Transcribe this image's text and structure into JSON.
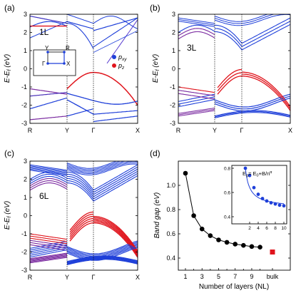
{
  "colors": {
    "p_xy": "#1e3fd9",
    "p_z": "#e0141c"
  },
  "panels": [
    {
      "id": "a",
      "label": "(a)",
      "layer_tag": "1L",
      "ylabel": "E-E_f (eV)",
      "yticks": [
        "3",
        "2",
        "1",
        "0",
        "-1",
        "-2",
        "-3"
      ],
      "kpoints": [
        "R",
        "Y",
        "Γ",
        "X"
      ],
      "legend": {
        "pxy": "p_xy",
        "pz": "p_z"
      },
      "bz": {
        "Y": "Y",
        "R": "R",
        "G": "Γ",
        "X": "X"
      }
    },
    {
      "id": "b",
      "label": "(b)",
      "layer_tag": "3L",
      "ylabel": "E-E_f (eV)",
      "yticks": [
        "3",
        "2",
        "1",
        "0",
        "-1",
        "-2",
        "-3"
      ],
      "kpoints": [
        "R",
        "Y",
        "Γ",
        "X"
      ]
    },
    {
      "id": "c",
      "label": "(c)",
      "layer_tag": "6L",
      "ylabel": "E-E_f (eV)",
      "yticks": [
        "3",
        "2",
        "1",
        "0",
        "-1",
        "-2",
        "-3"
      ],
      "kpoints": [
        "R",
        "Y",
        "Γ",
        "X"
      ]
    },
    {
      "id": "d",
      "label": "(d)"
    }
  ],
  "chart_data": [
    {
      "type": "line",
      "panel": "a",
      "title": "1L",
      "ylabel": "E-Ef (eV)",
      "ylim": [
        -3,
        3
      ],
      "x_labels": [
        "R",
        "Y",
        "Γ",
        "X"
      ],
      "series": [
        {
          "name": "p_xy"
        },
        {
          "name": "p_z"
        }
      ]
    },
    {
      "type": "line",
      "panel": "b",
      "title": "3L",
      "ylabel": "E-Ef (eV)",
      "ylim": [
        -3,
        3
      ],
      "x_labels": [
        "R",
        "Y",
        "Γ",
        "X"
      ]
    },
    {
      "type": "line",
      "panel": "c",
      "title": "6L",
      "ylabel": "E-Ef (eV)",
      "ylim": [
        -3,
        3
      ],
      "x_labels": [
        "R",
        "Y",
        "Γ",
        "X"
      ]
    },
    {
      "type": "scatter",
      "panel": "d",
      "xlabel": "Number of layers (NL)",
      "ylabel": "Band gap (eV)",
      "ylim": [
        0.3,
        1.2
      ],
      "yticks": [
        0.4,
        0.6,
        0.8,
        1.0
      ],
      "xtick_labels": [
        "1",
        "3",
        "5",
        "7",
        "9",
        "bulk"
      ],
      "xtick_values": [
        1,
        3,
        5,
        7,
        9,
        11.5
      ],
      "x": [
        1,
        2,
        3,
        4,
        5,
        6,
        7,
        8,
        9,
        10
      ],
      "values": [
        1.1,
        0.75,
        0.64,
        0.585,
        0.55,
        0.53,
        0.515,
        0.505,
        0.495,
        0.49
      ],
      "bulk": {
        "x": 11.5,
        "value": 0.45,
        "label": "bulk"
      },
      "inset": {
        "formula": "Eg = E0+B/n^α",
        "xlim": [
          0,
          10
        ],
        "ylim": [
          0.4,
          0.8
        ],
        "xticks": [
          2,
          4,
          6,
          8,
          10
        ],
        "yticks": [
          0.4,
          0.6,
          0.8
        ],
        "x": [
          1,
          2,
          3,
          4,
          5,
          6,
          7,
          8,
          9,
          10
        ],
        "values": [
          0.8,
          0.74,
          0.64,
          0.585,
          0.55,
          0.53,
          0.515,
          0.505,
          0.495,
          0.49
        ]
      }
    }
  ]
}
